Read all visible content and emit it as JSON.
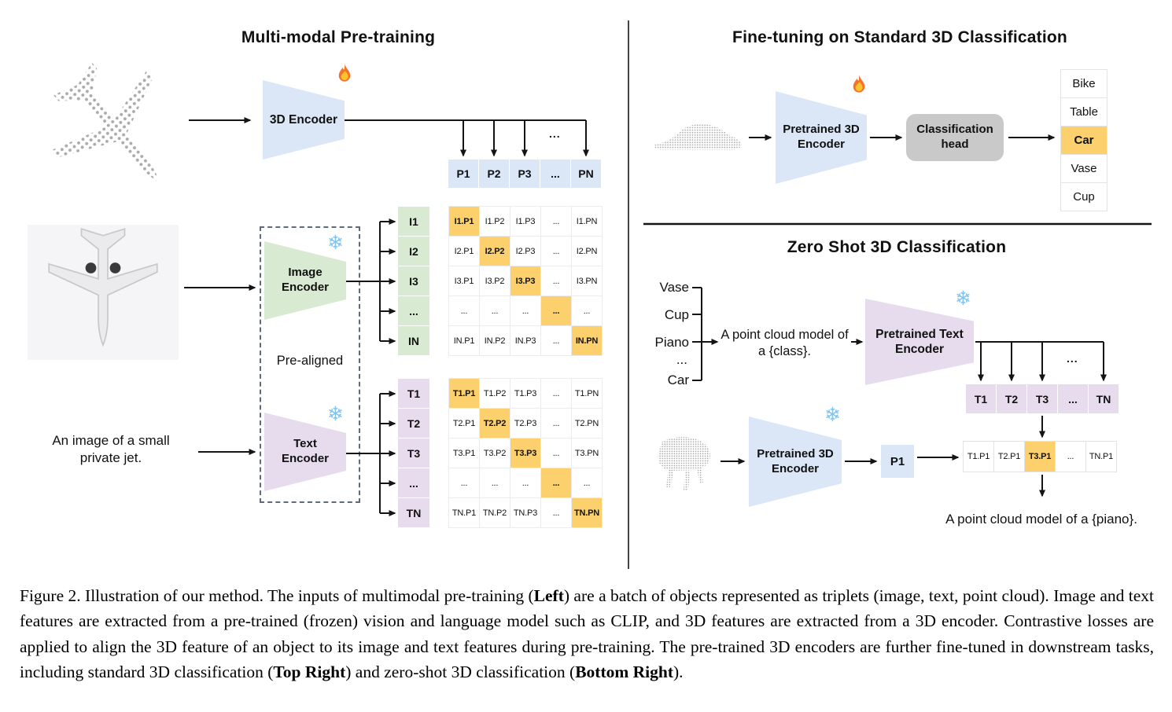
{
  "ellipsis": "...",
  "colors": {
    "accent_highlight": "#fbd06d",
    "encoder_blue": "#dbe7f6",
    "encoder_green": "#d9ead3",
    "encoder_purple": "#e6dcee",
    "head_gray": "#c9c9c9",
    "point_cloud_gray": "#ababab"
  },
  "icons": {
    "fire": "fire-icon",
    "snowflake": "snowflake-icon"
  },
  "left_panel": {
    "title": "Multi-modal Pre-training",
    "encoder_3d_label": "3D Encoder",
    "image_encoder_label": "Image\nEncoder",
    "text_encoder_label": "Text\nEncoder",
    "pre_aligned_label": "Pre-aligned",
    "image_caption": "An image of a small\nprivate jet.",
    "p_row": [
      {
        "t": "P1"
      },
      {
        "t": "P2"
      },
      {
        "t": "P3"
      },
      {
        "t": "..."
      },
      {
        "t": "PN"
      }
    ],
    "i_labels": [
      {
        "t": "I1"
      },
      {
        "t": "I2"
      },
      {
        "t": "I3"
      },
      {
        "t": "..."
      },
      {
        "t": "IN"
      }
    ],
    "t_labels": [
      {
        "t": "T1"
      },
      {
        "t": "T2"
      },
      {
        "t": "T3"
      },
      {
        "t": "..."
      },
      {
        "t": "TN"
      }
    ],
    "i_matrix": [
      [
        {
          "t": "I1.P1",
          "hl": true
        },
        {
          "t": "I1.P2"
        },
        {
          "t": "I1.P3"
        },
        {
          "t": "..."
        },
        {
          "t": "I1.PN"
        }
      ],
      [
        {
          "t": "I2.P1"
        },
        {
          "t": "I2.P2",
          "hl": true
        },
        {
          "t": "I2.P3"
        },
        {
          "t": "..."
        },
        {
          "t": "I2.PN"
        }
      ],
      [
        {
          "t": "I3.P1"
        },
        {
          "t": "I3.P2"
        },
        {
          "t": "I3.P3",
          "hl": true
        },
        {
          "t": "..."
        },
        {
          "t": "I3.PN"
        }
      ],
      [
        {
          "t": "..."
        },
        {
          "t": "..."
        },
        {
          "t": "..."
        },
        {
          "t": "...",
          "hl": true
        },
        {
          "t": "..."
        }
      ],
      [
        {
          "t": "IN.P1"
        },
        {
          "t": "IN.P2"
        },
        {
          "t": "IN.P3"
        },
        {
          "t": "..."
        },
        {
          "t": "IN.PN",
          "hl": true
        }
      ]
    ],
    "t_matrix": [
      [
        {
          "t": "T1.P1",
          "hl": true
        },
        {
          "t": "T1.P2"
        },
        {
          "t": "T1.P3"
        },
        {
          "t": "..."
        },
        {
          "t": "T1.PN"
        }
      ],
      [
        {
          "t": "T2.P1"
        },
        {
          "t": "T2.P2",
          "hl": true
        },
        {
          "t": "T2.P3"
        },
        {
          "t": "..."
        },
        {
          "t": "T2.PN"
        }
      ],
      [
        {
          "t": "T3.P1"
        },
        {
          "t": "T3.P2"
        },
        {
          "t": "T3.P3",
          "hl": true
        },
        {
          "t": "..."
        },
        {
          "t": "T3.PN"
        }
      ],
      [
        {
          "t": "..."
        },
        {
          "t": "..."
        },
        {
          "t": "..."
        },
        {
          "t": "...",
          "hl": true
        },
        {
          "t": "..."
        }
      ],
      [
        {
          "t": "TN.P1"
        },
        {
          "t": "TN.P2"
        },
        {
          "t": "TN.P3"
        },
        {
          "t": "..."
        },
        {
          "t": "TN.PN",
          "hl": true
        }
      ]
    ]
  },
  "fine_tuning": {
    "title": "Fine-tuning on Standard 3D Classification",
    "encoder_label": "Pretrained 3D\nEncoder",
    "head_label": "Classification\nhead",
    "classes": [
      {
        "t": "Bike"
      },
      {
        "t": "Table"
      },
      {
        "t": "Car",
        "hl": true
      },
      {
        "t": "Vase"
      },
      {
        "t": "Cup"
      }
    ]
  },
  "zero_shot": {
    "title": "Zero Shot 3D Classification",
    "class_words": [
      "Vase",
      "Cup",
      "Piano",
      "...",
      "Car"
    ],
    "prompt": "A point cloud model of\na {class}.",
    "text_encoder_label": "Pretrained Text\nEncoder",
    "encoder_3d_label": "Pretrained 3D\nEncoder",
    "p1_label": "P1",
    "t_row": [
      {
        "t": "T1"
      },
      {
        "t": "T2"
      },
      {
        "t": "T3"
      },
      {
        "t": "..."
      },
      {
        "t": "TN"
      }
    ],
    "result_row": [
      {
        "t": "T1.P1"
      },
      {
        "t": "T2.P1"
      },
      {
        "t": "T3.P1",
        "hl": true
      },
      {
        "t": "..."
      },
      {
        "t": "TN.P1"
      }
    ],
    "result_caption": "A point cloud model of a {piano}."
  },
  "caption": {
    "segments": [
      {
        "t": "Figure 2. Illustration of our method. The inputs of multimodal pre-training ("
      },
      {
        "t": "Left",
        "b": true
      },
      {
        "t": ") are a batch of objects represented as triplets (image, text, point cloud). Image and text features are extracted from a pre-trained (frozen) vision and language model such as CLIP, and 3D features are extracted from a 3D encoder. Contrastive losses are applied to align the 3D feature of an object to its image and text features during pre-training. The pre-trained 3D encoders are further fine-tuned in downstream tasks, including standard 3D classification ("
      },
      {
        "t": "Top Right",
        "b": true
      },
      {
        "t": ") and zero-shot 3D classification ("
      },
      {
        "t": "Bottom Right",
        "b": true
      },
      {
        "t": ")."
      }
    ]
  }
}
